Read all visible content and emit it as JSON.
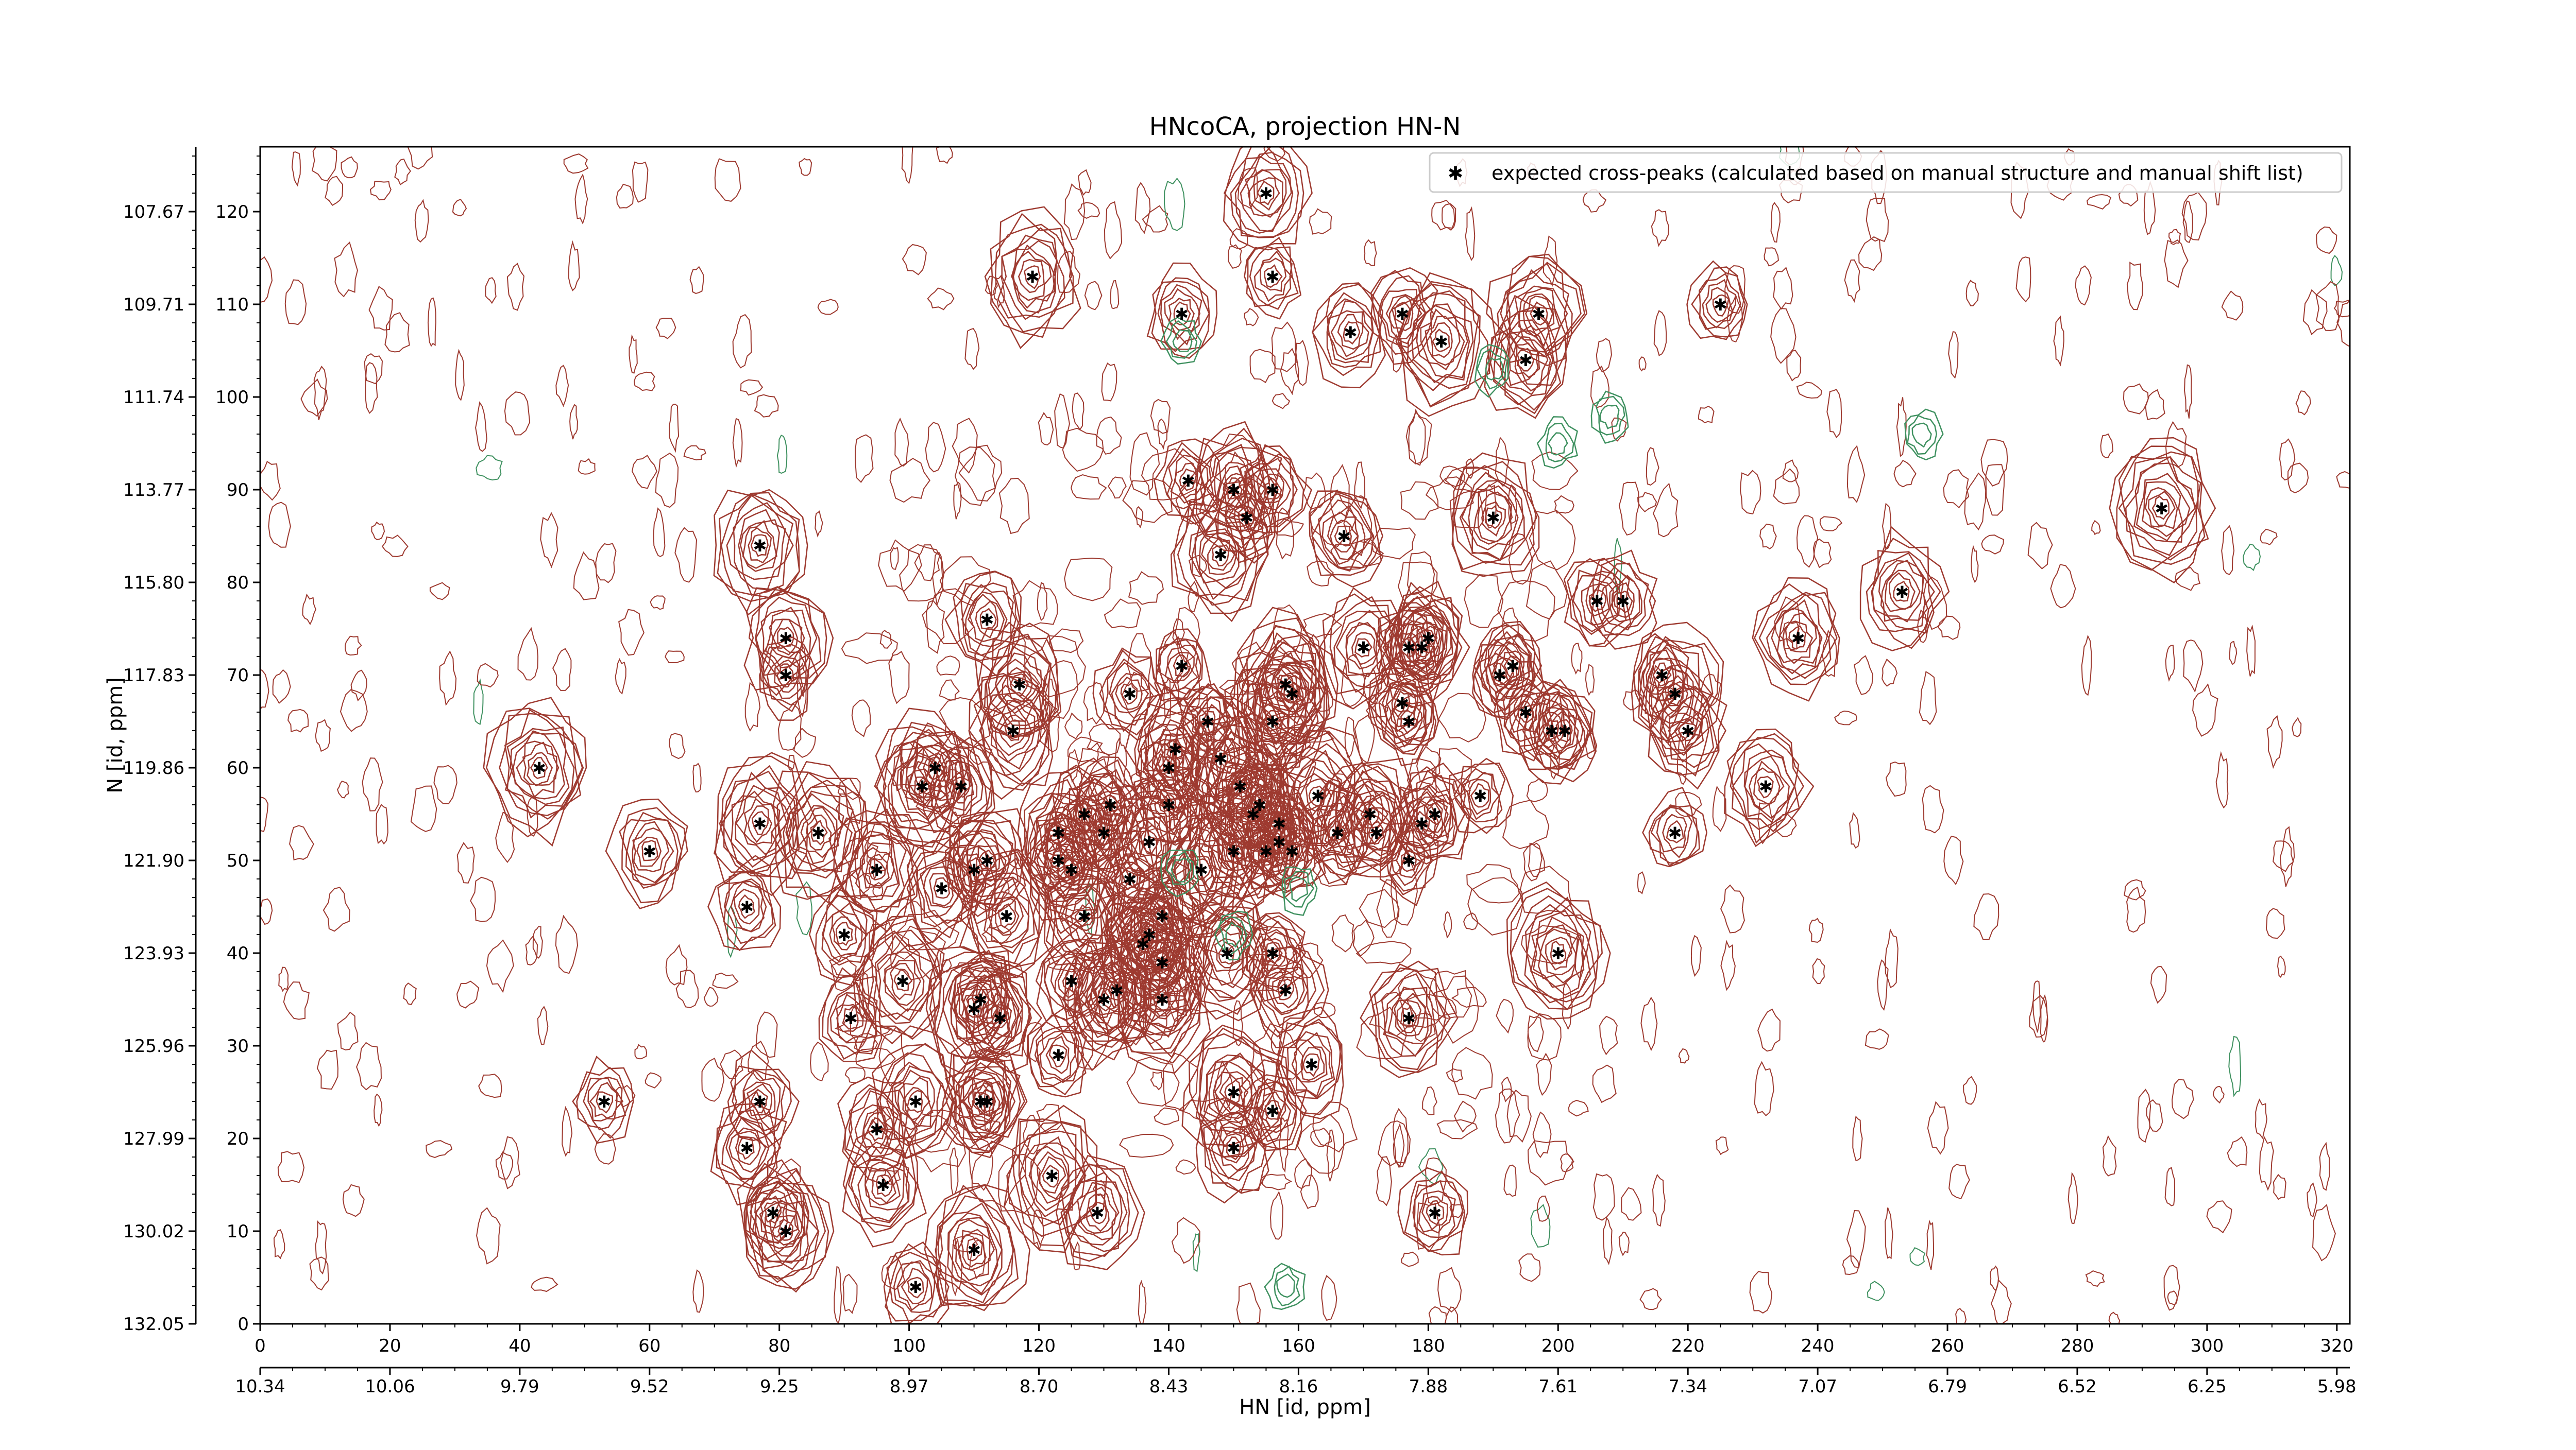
{
  "chart_data": {
    "type": "scatter",
    "subtype": "nmr-2d-contour",
    "title": "HNcoCA, projection HN-N",
    "xlabel": "HN [id, ppm]",
    "ylabel": "N [id, ppm]",
    "xlim": [
      0,
      322
    ],
    "ylim": [
      0,
      127
    ],
    "x_ticks": [
      0,
      20,
      40,
      60,
      80,
      100,
      120,
      140,
      160,
      180,
      200,
      220,
      240,
      260,
      280,
      300,
      320
    ],
    "y_ticks": [
      0,
      10,
      20,
      30,
      40,
      50,
      60,
      70,
      80,
      90,
      100,
      110,
      120
    ],
    "x_ppm_ticks": [
      "10.34",
      "10.06",
      "9.79",
      "9.52",
      "9.25",
      "8.97",
      "8.70",
      "8.43",
      "8.16",
      "7.88",
      "7.61",
      "7.34",
      "7.07",
      "6.79",
      "6.52",
      "6.25",
      "5.98"
    ],
    "y_ppm_ticks": [
      "132.05",
      "130.02",
      "127.99",
      "125.96",
      "123.93",
      "121.90",
      "119.86",
      "117.83",
      "115.80",
      "113.77",
      "111.74",
      "109.71",
      "107.67"
    ],
    "legend": {
      "position": "top-right",
      "entries": [
        "expected cross-peaks (calculated based on manual structure and manual shift list)"
      ]
    },
    "grid": false,
    "colors": {
      "expected_marker": "#0000ee",
      "positive_contour": "#9e3a30",
      "negative_contour": "#3f9160",
      "axis": "#000000"
    },
    "series": [
      {
        "name": "expected cross-peaks (calculated based on manual structure and manual shift list)",
        "marker": "star",
        "points": [
          [
            155,
            122
          ],
          [
            119,
            113
          ],
          [
            156,
            113
          ],
          [
            142,
            109
          ],
          [
            168,
            107
          ],
          [
            176,
            109
          ],
          [
            182,
            106
          ],
          [
            195,
            104
          ],
          [
            197,
            109
          ],
          [
            225,
            110
          ],
          [
            143,
            91
          ],
          [
            150,
            90
          ],
          [
            156,
            90
          ],
          [
            152,
            87
          ],
          [
            148,
            83
          ],
          [
            167,
            85
          ],
          [
            190,
            87
          ],
          [
            293,
            88
          ],
          [
            77,
            84
          ],
          [
            81,
            74
          ],
          [
            81,
            70
          ],
          [
            112,
            76
          ],
          [
            117,
            69
          ],
          [
            116,
            64
          ],
          [
            142,
            71
          ],
          [
            134,
            68
          ],
          [
            146,
            65
          ],
          [
            141,
            62
          ],
          [
            140,
            60
          ],
          [
            151,
            58
          ],
          [
            148,
            61
          ],
          [
            156,
            65
          ],
          [
            158,
            69
          ],
          [
            159,
            68
          ],
          [
            170,
            73
          ],
          [
            176,
            67
          ],
          [
            177,
            73
          ],
          [
            179,
            73
          ],
          [
            180,
            74
          ],
          [
            177,
            65
          ],
          [
            193,
            71
          ],
          [
            191,
            70
          ],
          [
            195,
            66
          ],
          [
            199,
            64
          ],
          [
            201,
            64
          ],
          [
            206,
            78
          ],
          [
            210,
            78
          ],
          [
            216,
            70
          ],
          [
            218,
            68
          ],
          [
            220,
            64
          ],
          [
            237,
            74
          ],
          [
            253,
            79
          ],
          [
            43,
            60
          ],
          [
            60,
            51
          ],
          [
            77,
            54
          ],
          [
            86,
            53
          ],
          [
            75,
            45
          ],
          [
            95,
            49
          ],
          [
            102,
            58
          ],
          [
            104,
            60
          ],
          [
            108,
            58
          ],
          [
            105,
            47
          ],
          [
            110,
            49
          ],
          [
            112,
            50
          ],
          [
            123,
            50
          ],
          [
            123,
            53
          ],
          [
            125,
            49
          ],
          [
            127,
            55
          ],
          [
            130,
            53
          ],
          [
            131,
            56
          ],
          [
            134,
            48
          ],
          [
            137,
            52
          ],
          [
            140,
            56
          ],
          [
            145,
            49
          ],
          [
            154,
            56
          ],
          [
            157,
            54
          ],
          [
            157,
            52
          ],
          [
            159,
            51
          ],
          [
            166,
            53
          ],
          [
            171,
            55
          ],
          [
            172,
            53
          ],
          [
            177,
            50
          ],
          [
            179,
            54
          ],
          [
            181,
            55
          ],
          [
            188,
            57
          ],
          [
            163,
            57
          ],
          [
            155,
            51
          ],
          [
            153,
            55
          ],
          [
            150,
            51
          ],
          [
            200,
            40
          ],
          [
            218,
            53
          ],
          [
            232,
            58
          ],
          [
            115,
            44
          ],
          [
            127,
            44
          ],
          [
            136,
            41
          ],
          [
            137,
            42
          ],
          [
            139,
            44
          ],
          [
            90,
            42
          ],
          [
            99,
            37
          ],
          [
            91,
            33
          ],
          [
            110,
            34
          ],
          [
            111,
            35
          ],
          [
            114,
            33
          ],
          [
            125,
            37
          ],
          [
            130,
            35
          ],
          [
            132,
            36
          ],
          [
            139,
            35
          ],
          [
            139,
            39
          ],
          [
            149,
            40
          ],
          [
            156,
            40
          ],
          [
            158,
            36
          ],
          [
            177,
            33
          ],
          [
            162,
            28
          ],
          [
            123,
            29
          ],
          [
            53,
            24
          ],
          [
            77,
            24
          ],
          [
            75,
            19
          ],
          [
            95,
            21
          ],
          [
            101,
            24
          ],
          [
            111,
            24
          ],
          [
            112,
            24
          ],
          [
            150,
            25
          ],
          [
            156,
            23
          ],
          [
            150,
            19
          ],
          [
            96,
            15
          ],
          [
            122,
            16
          ],
          [
            79,
            12
          ],
          [
            81,
            10
          ],
          [
            110,
            8
          ],
          [
            101,
            4
          ],
          [
            129,
            12
          ],
          [
            181,
            12
          ]
        ]
      }
    ]
  }
}
